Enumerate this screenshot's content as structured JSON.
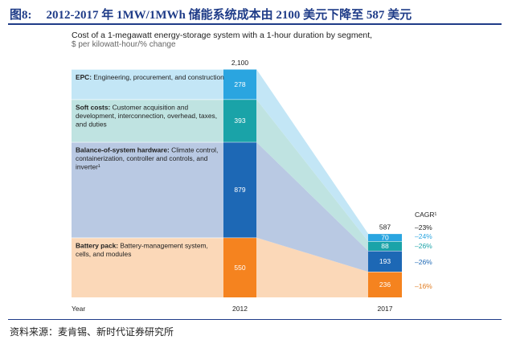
{
  "figure": {
    "tag": "图8:",
    "title": "2012-2017 年 1MW/1MWh 储能系统成本由 2100 美元下降至 587 美元",
    "source": "资料来源：麦肯锡、新时代证券研究所"
  },
  "chart_data": {
    "type": "bar",
    "stacked": true,
    "title": "Cost of a 1-megawatt energy-storage system with a 1-hour duration by segment,",
    "subtitle": "$ per kilowatt-hour/% change",
    "xlabel": "Year",
    "categories": [
      "2012",
      "2017"
    ],
    "totals": [
      2100,
      587
    ],
    "total_labels": [
      "2,100",
      "587"
    ],
    "cagr_header": "CAGR¹",
    "total_cagr": "–23%",
    "series": [
      {
        "name_bold": "Battery pack:",
        "name_rest": "Battery-management system, cells, and modules",
        "values": [
          550,
          236
        ],
        "color": "#f5831f",
        "band_color": "#fbd8b8",
        "cagr": "–16%",
        "cagr_color": "#e07b1f"
      },
      {
        "name_bold": "Balance-of-system hardware:",
        "name_rest": "Climate control, containerization, controller and controls, and inverter¹",
        "values": [
          879,
          193
        ],
        "color": "#1d68b5",
        "band_color": "#b9c9e3",
        "cagr": "–26%",
        "cagr_color": "#1d68b5"
      },
      {
        "name_bold": "Soft costs:",
        "name_rest": "Customer acquisition and development, interconnection, overhead, taxes, and duties",
        "values": [
          393,
          88
        ],
        "color": "#1aa3a8",
        "band_color": "#bfe3e1",
        "cagr": "–26%",
        "cagr_color": "#1aa3a8"
      },
      {
        "name_bold": "EPC:",
        "name_rest": "Engineering, procurement, and construction",
        "values": [
          278,
          70
        ],
        "color": "#2aa5e0",
        "band_color": "#c3e6f6",
        "cagr": "–24%",
        "cagr_color": "#2aa5e0"
      }
    ]
  }
}
